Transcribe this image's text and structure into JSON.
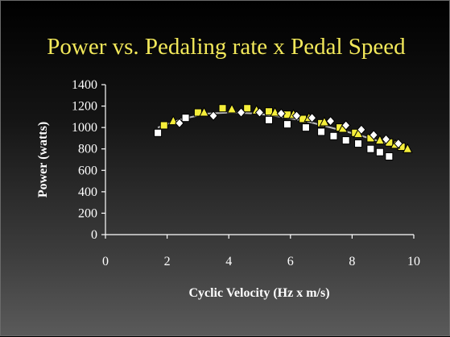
{
  "chart_data": {
    "type": "scatter",
    "title": "Power vs. Pedaling rate x Pedal Speed",
    "xlabel": "Cyclic Velocity (Hz x m/s)",
    "ylabel": "Power (watts)",
    "xlim": [
      0,
      10
    ],
    "ylim": [
      0,
      1400
    ],
    "xticks": [
      "0",
      "2",
      "4",
      "6",
      "8",
      "10"
    ],
    "yticks": [
      "0",
      "200",
      "400",
      "600",
      "800",
      "1000",
      "1200",
      "1400"
    ],
    "grid": false,
    "legend": "none",
    "series": [
      {
        "marker": "square",
        "color": "#ffffff",
        "x": [
          1.7,
          2.6,
          5.3,
          5.9,
          6.5,
          7.0,
          7.4,
          7.8,
          8.2,
          8.6,
          8.9,
          9.2
        ],
        "y": [
          950,
          1090,
          1070,
          1030,
          1000,
          960,
          920,
          880,
          850,
          800,
          770,
          730
        ]
      },
      {
        "marker": "square",
        "color": "#f5ee3a",
        "x": [
          1.9,
          3.0,
          3.8,
          4.6,
          5.3,
          5.9,
          6.4,
          7.0,
          7.6,
          8.1,
          8.6,
          9.2,
          9.6
        ],
        "y": [
          1020,
          1140,
          1180,
          1180,
          1150,
          1120,
          1080,
          1040,
          1000,
          950,
          900,
          860,
          820
        ]
      },
      {
        "marker": "triangle",
        "color": "#f5ee3a",
        "x": [
          2.2,
          3.2,
          4.1,
          4.9,
          5.5,
          6.1,
          6.6,
          7.1,
          7.7,
          8.2,
          8.9,
          9.4,
          9.8
        ],
        "y": [
          1060,
          1140,
          1170,
          1160,
          1140,
          1120,
          1090,
          1050,
          990,
          940,
          880,
          840,
          800
        ]
      },
      {
        "marker": "diamond",
        "color": "#ffffff",
        "x": [
          2.4,
          3.5,
          4.4,
          5.0,
          5.7,
          6.2,
          6.7,
          7.3,
          7.8,
          8.3,
          8.7,
          9.1,
          9.5
        ],
        "y": [
          1040,
          1110,
          1140,
          1140,
          1130,
          1110,
          1090,
          1060,
          1020,
          980,
          930,
          890,
          850
        ]
      }
    ],
    "trendline": {
      "color": "#bbbbbb",
      "x": [
        1.7,
        2.5,
        3.3,
        4.1,
        4.9,
        5.7,
        6.5,
        7.3,
        8.1,
        8.9,
        9.8
      ],
      "y": [
        1000,
        1080,
        1130,
        1140,
        1130,
        1100,
        1060,
        1000,
        940,
        870,
        790
      ]
    }
  }
}
